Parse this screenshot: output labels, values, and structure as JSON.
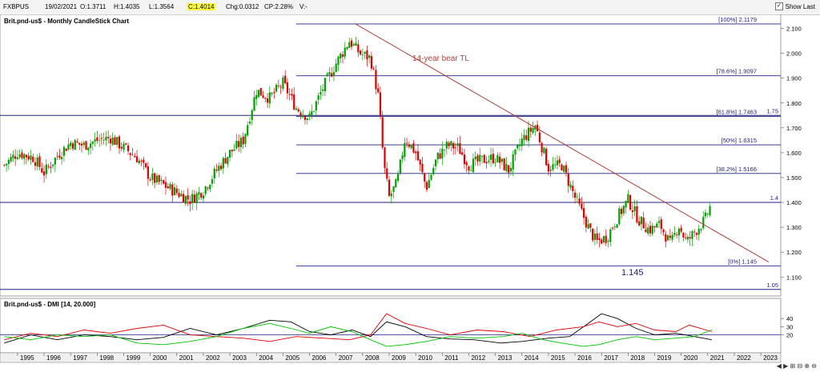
{
  "toolbar": {
    "symbol": "FXBPUS",
    "date": "19/02/2021",
    "open": "O:1.3711",
    "high": "H:1.4035",
    "low": "L:1.3564",
    "close": "C:1.4014",
    "change": "Chg:0.0312",
    "change_pct": "CP:2.28%",
    "volume": "V:-",
    "show_last_label": "Show Last",
    "show_last_checked": true
  },
  "chart_data": [
    {
      "type": "candlestick",
      "title": "Brit.pnd-us$ - Monthly CandleStick Chart",
      "y_ticks": [
        "1.100",
        "1.200",
        "1.300",
        "1.400",
        "1.500",
        "1.600",
        "1.700",
        "1.800",
        "1.900",
        "2.000",
        "2.100"
      ],
      "ylim": [
        1.03,
        2.15
      ],
      "x_ticks": [
        "1995",
        "1996",
        "1997",
        "1998",
        "1999",
        "2000",
        "2001",
        "2002",
        "2003",
        "2004",
        "2005",
        "2006",
        "2007",
        "2008",
        "2009",
        "2010",
        "2011",
        "2012",
        "2013",
        "2014",
        "2015",
        "2016",
        "2017",
        "2018",
        "2019",
        "2020",
        "2021",
        "2022",
        "2023"
      ],
      "price_path": [
        [
          1994.5,
          1.55
        ],
        [
          1995.0,
          1.6
        ],
        [
          1995.6,
          1.58
        ],
        [
          1996.0,
          1.52
        ],
        [
          1996.6,
          1.6
        ],
        [
          1997.0,
          1.64
        ],
        [
          1997.5,
          1.63
        ],
        [
          1998.0,
          1.65
        ],
        [
          1998.5,
          1.66
        ],
        [
          1999.0,
          1.62
        ],
        [
          1999.5,
          1.58
        ],
        [
          2000.0,
          1.5
        ],
        [
          2000.5,
          1.47
        ],
        [
          2001.0,
          1.44
        ],
        [
          2001.5,
          1.41
        ],
        [
          2002.0,
          1.45
        ],
        [
          2002.5,
          1.53
        ],
        [
          2003.0,
          1.6
        ],
        [
          2003.5,
          1.65
        ],
        [
          2004.0,
          1.85
        ],
        [
          2004.5,
          1.82
        ],
        [
          2005.0,
          1.88
        ],
        [
          2005.5,
          1.78
        ],
        [
          2006.0,
          1.74
        ],
        [
          2006.5,
          1.86
        ],
        [
          2007.0,
          1.96
        ],
        [
          2007.5,
          2.05
        ],
        [
          2007.9,
          2.0
        ],
        [
          2008.3,
          1.98
        ],
        [
          2008.6,
          1.82
        ],
        [
          2008.8,
          1.55
        ],
        [
          2009.0,
          1.42
        ],
        [
          2009.3,
          1.48
        ],
        [
          2009.6,
          1.66
        ],
        [
          2010.0,
          1.6
        ],
        [
          2010.4,
          1.46
        ],
        [
          2010.8,
          1.58
        ],
        [
          2011.2,
          1.63
        ],
        [
          2011.6,
          1.62
        ],
        [
          2012.0,
          1.55
        ],
        [
          2012.5,
          1.57
        ],
        [
          2013.0,
          1.58
        ],
        [
          2013.5,
          1.53
        ],
        [
          2014.0,
          1.65
        ],
        [
          2014.5,
          1.71
        ],
        [
          2015.0,
          1.54
        ],
        [
          2015.5,
          1.55
        ],
        [
          2016.0,
          1.42
        ],
        [
          2016.5,
          1.3
        ],
        [
          2016.8,
          1.24
        ],
        [
          2017.2,
          1.26
        ],
        [
          2017.6,
          1.34
        ],
        [
          2018.0,
          1.41
        ],
        [
          2018.4,
          1.33
        ],
        [
          2018.8,
          1.29
        ],
        [
          2019.2,
          1.31
        ],
        [
          2019.6,
          1.23
        ],
        [
          2019.9,
          1.31
        ],
        [
          2020.2,
          1.24
        ],
        [
          2020.5,
          1.28
        ],
        [
          2020.9,
          1.33
        ],
        [
          2021.15,
          1.4
        ]
      ],
      "horizontal_lines": [
        {
          "label": "[100%] 2.1179",
          "value": 2.1179,
          "start_x": 2005.5
        },
        {
          "label": "[78.6%] 1.9097",
          "value": 1.9097,
          "start_x": 2005.5
        },
        {
          "label": "[61.8%] 1.7463",
          "value": 1.7463,
          "start_x": 2005.5
        },
        {
          "label": "[50%] 1.6315",
          "value": 1.6315,
          "start_x": 2005.5
        },
        {
          "label": "[38.2%] 1.5166",
          "value": 1.5166,
          "start_x": 2005.5
        },
        {
          "label": "[0%] 1.145",
          "value": 1.145,
          "start_x": 2005.5
        }
      ],
      "full_lines": [
        {
          "label": "1.75",
          "value": 1.75
        },
        {
          "label": "1.4",
          "value": 1.4
        },
        {
          "label": "1.05",
          "value": 1.05
        }
      ],
      "trendline": {
        "label": "14-year bear TL",
        "from": [
          2007.7,
          2.12
        ],
        "to": [
          2023.3,
          1.16
        ]
      },
      "annotations": [
        {
          "text": "1.145"
        }
      ],
      "colors": {
        "up": "#00a000",
        "down": "#e00000",
        "level": "#202080",
        "trend": "#b04040"
      }
    },
    {
      "type": "line",
      "title": "Brit.pnd-us$ - DMI [14, 20.000]",
      "y_ticks": [
        "20",
        "30",
        "40"
      ],
      "ylim": [
        0,
        52
      ],
      "reference_level": 20,
      "series": [
        {
          "color": "#000000",
          "points": [
            [
              1994.5,
              10
            ],
            [
              1995.5,
              20
            ],
            [
              1996.5,
              14
            ],
            [
              1997.5,
              20
            ],
            [
              1998.5,
              18
            ],
            [
              1999.5,
              14
            ],
            [
              2000.5,
              17
            ],
            [
              2001.5,
              28
            ],
            [
              2002.5,
              20
            ],
            [
              2003.5,
              28
            ],
            [
              2004.5,
              38
            ],
            [
              2005.3,
              36
            ],
            [
              2006.0,
              24
            ],
            [
              2006.8,
              20
            ],
            [
              2007.6,
              26
            ],
            [
              2008.3,
              18
            ],
            [
              2008.9,
              36
            ],
            [
              2009.6,
              30
            ],
            [
              2010.4,
              18
            ],
            [
              2011.3,
              15
            ],
            [
              2012.2,
              14
            ],
            [
              2013.2,
              10
            ],
            [
              2014.0,
              12
            ],
            [
              2015.0,
              16
            ],
            [
              2015.8,
              18
            ],
            [
              2016.5,
              34
            ],
            [
              2017.0,
              46
            ],
            [
              2017.6,
              40
            ],
            [
              2018.3,
              28
            ],
            [
              2019.0,
              20
            ],
            [
              2019.8,
              22
            ],
            [
              2020.5,
              18
            ],
            [
              2021.15,
              14
            ]
          ]
        },
        {
          "color": "#e00000",
          "points": [
            [
              1994.5,
              14
            ],
            [
              1995.5,
              22
            ],
            [
              1996.5,
              18
            ],
            [
              1997.5,
              26
            ],
            [
              1998.5,
              22
            ],
            [
              1999.5,
              28
            ],
            [
              2000.5,
              32
            ],
            [
              2001.5,
              20
            ],
            [
              2002.5,
              18
            ],
            [
              2003.5,
              16
            ],
            [
              2004.5,
              12
            ],
            [
              2005.5,
              18
            ],
            [
              2006.5,
              16
            ],
            [
              2007.5,
              14
            ],
            [
              2008.3,
              20
            ],
            [
              2008.9,
              46
            ],
            [
              2009.6,
              34
            ],
            [
              2010.4,
              28
            ],
            [
              2011.3,
              20
            ],
            [
              2012.3,
              26
            ],
            [
              2013.3,
              24
            ],
            [
              2014.3,
              18
            ],
            [
              2015.3,
              26
            ],
            [
              2016.3,
              30
            ],
            [
              2016.9,
              36
            ],
            [
              2017.6,
              30
            ],
            [
              2018.3,
              34
            ],
            [
              2019.0,
              26
            ],
            [
              2019.8,
              24
            ],
            [
              2020.3,
              32
            ],
            [
              2021.15,
              24
            ]
          ]
        },
        {
          "color": "#00c000",
          "points": [
            [
              1994.5,
              18
            ],
            [
              1995.5,
              14
            ],
            [
              1996.5,
              20
            ],
            [
              1997.5,
              18
            ],
            [
              1998.5,
              20
            ],
            [
              1999.5,
              10
            ],
            [
              2000.5,
              8
            ],
            [
              2001.5,
              12
            ],
            [
              2002.5,
              18
            ],
            [
              2003.5,
              28
            ],
            [
              2004.5,
              34
            ],
            [
              2005.3,
              28
            ],
            [
              2006.0,
              22
            ],
            [
              2006.8,
              30
            ],
            [
              2007.6,
              24
            ],
            [
              2008.3,
              14
            ],
            [
              2008.9,
              6
            ],
            [
              2009.6,
              8
            ],
            [
              2010.4,
              12
            ],
            [
              2011.3,
              18
            ],
            [
              2012.3,
              16
            ],
            [
              2013.3,
              18
            ],
            [
              2014.0,
              22
            ],
            [
              2014.8,
              14
            ],
            [
              2015.5,
              10
            ],
            [
              2016.3,
              6
            ],
            [
              2016.9,
              8
            ],
            [
              2017.6,
              14
            ],
            [
              2018.3,
              18
            ],
            [
              2019.0,
              14
            ],
            [
              2019.8,
              16
            ],
            [
              2020.5,
              18
            ],
            [
              2021.15,
              26
            ]
          ]
        }
      ]
    }
  ]
}
